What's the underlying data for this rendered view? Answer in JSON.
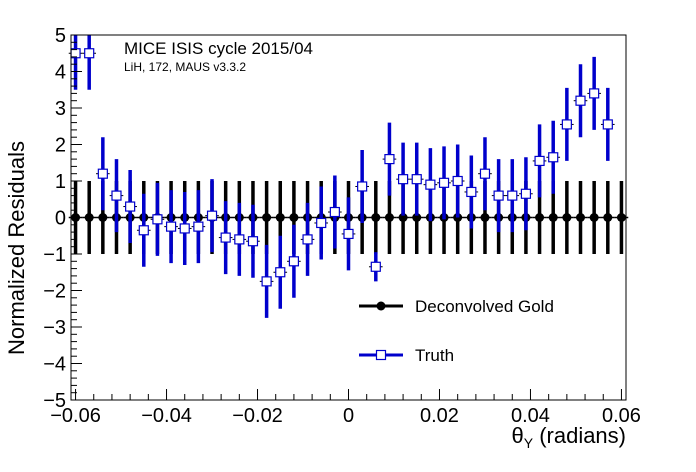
{
  "chart_data": {
    "type": "scatter",
    "xlabel_main": "θ",
    "xlabel_sub": "Y",
    "xlabel_rest": " (radians)",
    "ylabel": "Normalized Residuals",
    "xlim": [
      -0.061,
      0.061
    ],
    "ylim": [
      -5,
      5
    ],
    "x_ticks": [
      -0.06,
      -0.04,
      -0.02,
      0,
      0.02,
      0.04,
      0.06
    ],
    "x_tick_labels": [
      "−0.06",
      "−0.04",
      "−0.02",
      "0",
      "0.02",
      "0.04",
      "0.06"
    ],
    "y_ticks": [
      -5,
      -4,
      -3,
      -2,
      -1,
      0,
      1,
      2,
      3,
      4,
      5
    ],
    "y_tick_labels": [
      "−5",
      "−4",
      "−3",
      "−2",
      "−1",
      "0",
      "1",
      "2",
      "3",
      "4",
      "5"
    ],
    "annotations": {
      "title": "MICE ISIS cycle 2015/04",
      "subtitle": "LiH, 172, MAUS v3.3.2"
    },
    "legend": {
      "placement": "bottom-right",
      "entries": [
        "Deconvolved Gold",
        "Truth"
      ]
    },
    "series": [
      {
        "name": "Deconvolved Gold",
        "color": "#000000",
        "marker": "filled-circle",
        "x": [
          -0.06,
          -0.057,
          -0.054,
          -0.051,
          -0.048,
          -0.045,
          -0.042,
          -0.039,
          -0.036,
          -0.033,
          -0.03,
          -0.027,
          -0.024,
          -0.021,
          -0.018,
          -0.015,
          -0.012,
          -0.009,
          -0.006,
          -0.003,
          0,
          0.003,
          0.006,
          0.009,
          0.012,
          0.015,
          0.018,
          0.021,
          0.024,
          0.027,
          0.03,
          0.033,
          0.036,
          0.039,
          0.042,
          0.045,
          0.048,
          0.051,
          0.054,
          0.057,
          0.06
        ],
        "y": [
          0,
          0,
          0,
          0,
          0,
          0,
          0,
          0,
          0,
          0,
          0,
          0,
          0,
          0,
          0,
          0,
          0,
          0,
          0,
          0,
          0,
          0,
          0,
          0,
          0,
          0,
          0,
          0,
          0,
          0,
          0,
          0,
          0,
          0,
          0,
          0,
          0,
          0,
          0,
          0,
          0
        ],
        "yerr": [
          1,
          1,
          1,
          1,
          1,
          1,
          1,
          1,
          1,
          1,
          1,
          1,
          1,
          1,
          1,
          1,
          1,
          1,
          1,
          1,
          1,
          1,
          1,
          1,
          1,
          1,
          1,
          1,
          1,
          1,
          1,
          1,
          1,
          1,
          1,
          1,
          1,
          1,
          1,
          1,
          1
        ]
      },
      {
        "name": "Truth",
        "color": "#0000cc",
        "marker": "open-square",
        "x": [
          -0.06,
          -0.057,
          -0.054,
          -0.051,
          -0.048,
          -0.045,
          -0.042,
          -0.039,
          -0.036,
          -0.033,
          -0.03,
          -0.027,
          -0.024,
          -0.021,
          -0.018,
          -0.015,
          -0.012,
          -0.009,
          -0.006,
          -0.003,
          0,
          0.003,
          0.006,
          0.009,
          0.012,
          0.015,
          0.018,
          0.021,
          0.024,
          0.027,
          0.03,
          0.033,
          0.036,
          0.039,
          0.042,
          0.045,
          0.048,
          0.051,
          0.054,
          0.057
        ],
        "y": [
          4.5,
          4.5,
          1.2,
          0.6,
          0.3,
          -0.35,
          -0.05,
          -0.25,
          -0.3,
          -0.25,
          0.05,
          -0.55,
          -0.6,
          -0.65,
          -1.75,
          -1.5,
          -1.2,
          -0.6,
          -0.15,
          0.15,
          -0.45,
          0.85,
          -1.35,
          1.6,
          1.05,
          1.05,
          0.9,
          0.95,
          1.0,
          0.7,
          1.2,
          0.6,
          0.6,
          0.65,
          1.55,
          1.65,
          2.55,
          3.2,
          3.4,
          2.55
        ],
        "yerr": [
          1.0,
          1.0,
          1.0,
          1.0,
          1.0,
          1.0,
          1.0,
          1.0,
          1.0,
          1.0,
          1.0,
          1.0,
          1.0,
          1.0,
          1.0,
          1.0,
          1.0,
          1.0,
          1.0,
          1.0,
          1.0,
          1.0,
          0.4,
          1.0,
          1.0,
          1.0,
          1.0,
          1.0,
          1.0,
          1.0,
          1.0,
          1.0,
          1.0,
          1.0,
          1.0,
          1.0,
          1.0,
          1.0,
          1.0,
          1.0
        ]
      }
    ]
  }
}
